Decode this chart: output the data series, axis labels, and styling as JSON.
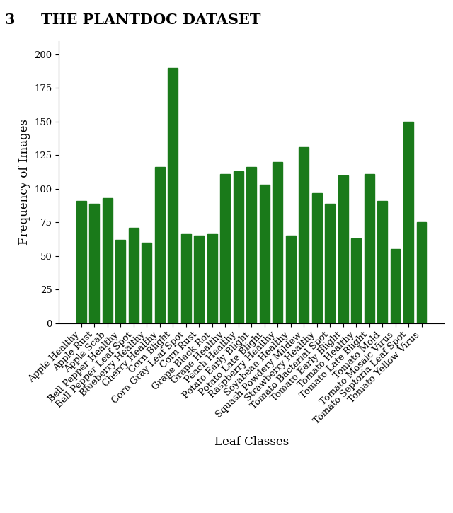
{
  "categories": [
    "Apple Healthy",
    "Apple Rust",
    "Apple Scab",
    "Bell Pepper Healthy",
    "Bell Pepper Leaf Spot",
    "Blueberry Healthy",
    "Cherry Healthy",
    "Corn Blight",
    "Corn Gray Leaf Spot",
    "Corn Rust",
    "Grape Black Rot",
    "Grape Healthy",
    "Peach Healthy",
    "Potato Early Blight",
    "Potato Late Blight",
    "Raspberry Healthy",
    "Soyabean Healthy",
    "Squash Powdery Mildew",
    "Strawberry Healthy",
    "Tomato Bacterial Spot",
    "Tomato Early Blight",
    "Tomato Healthy",
    "Tomato Late Blight",
    "Tomato Mold",
    "Tomato Mosaic Virus",
    "Tomato Septoria Leaf Spot",
    "Tomato Yellow Virus"
  ],
  "values": [
    91,
    89,
    93,
    62,
    71,
    60,
    116,
    190,
    67,
    65,
    67,
    111,
    113,
    116,
    103,
    120,
    65,
    131,
    97,
    89,
    110,
    63,
    111,
    91,
    55,
    150,
    75
  ],
  "bar_color": "#1a7a1a",
  "ylabel": "Frequency of Images",
  "xlabel": "Leaf Classes",
  "ylim": [
    0,
    210
  ],
  "yticks": [
    0,
    25,
    50,
    75,
    100,
    125,
    150,
    175,
    200
  ],
  "title_num": "3",
  "title_text": "THE PLANTDOC DATASET",
  "title_fontsize": 15,
  "axis_fontsize": 12,
  "tick_fontsize": 9.5,
  "bar_width": 0.75,
  "label_rotation": 45,
  "fig_width": 6.4,
  "fig_height": 7.25
}
